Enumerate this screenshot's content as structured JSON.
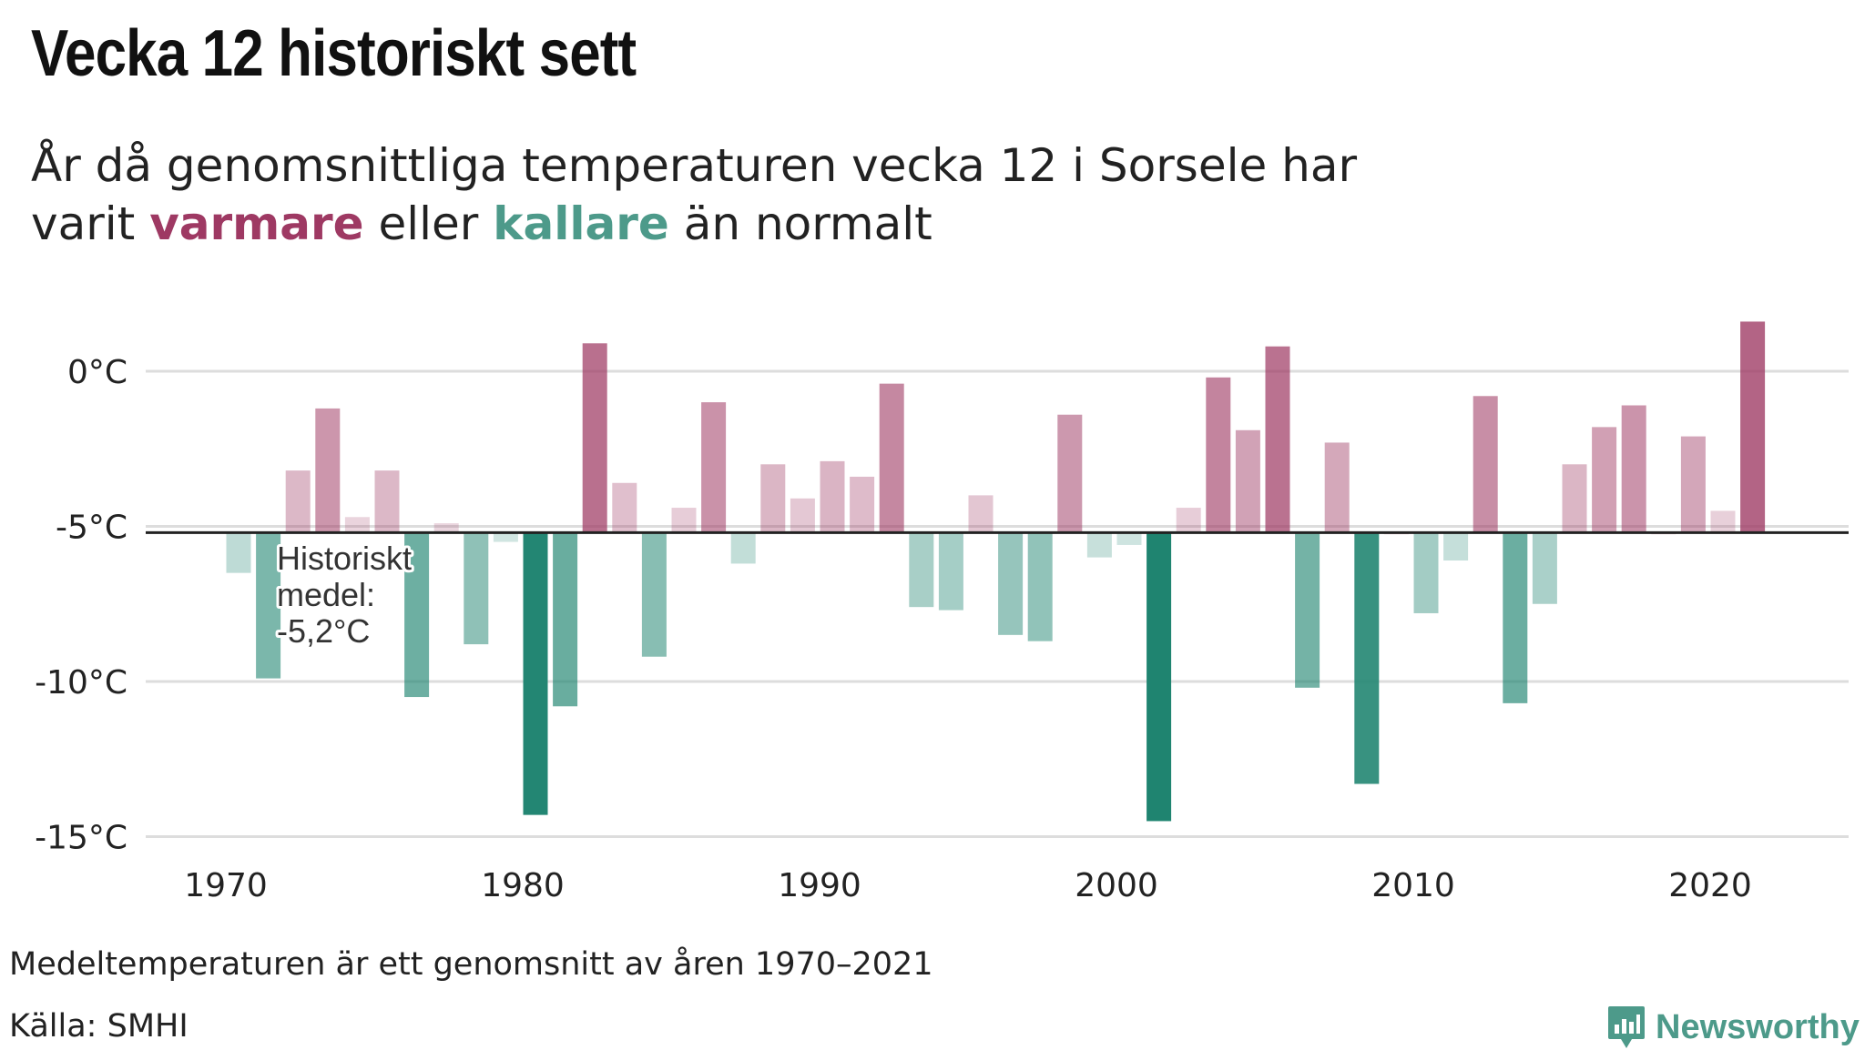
{
  "header": {
    "title": "Vecka 12 historiskt sett",
    "subtitle_line1": "År då genomsnittliga temperaturen vecka 12 i Sorsele har",
    "subtitle_pre": "varit ",
    "subtitle_warm": "varmare",
    "subtitle_mid": " eller ",
    "subtitle_cold": "kallare",
    "subtitle_post": " än normalt"
  },
  "footer": {
    "note": "Medeltemperaturen är ett genomsnitt av åren 1970–2021",
    "source": "Källa: SMHI",
    "brand": "Newsworthy"
  },
  "colors": {
    "warm": "#9e3963",
    "cold": "#1f8470",
    "mean_line": "#222222",
    "grid": "#dddddd"
  },
  "chart_data": {
    "type": "bar",
    "baseline": -5.2,
    "baseline_label": [
      "Historiskt",
      "medel:",
      "-5,2°C"
    ],
    "x": [
      1970,
      1971,
      1972,
      1973,
      1974,
      1975,
      1976,
      1977,
      1978,
      1979,
      1980,
      1981,
      1982,
      1983,
      1984,
      1985,
      1986,
      1987,
      1988,
      1989,
      1990,
      1991,
      1992,
      1993,
      1994,
      1995,
      1996,
      1997,
      1998,
      1999,
      2000,
      2001,
      2002,
      2003,
      2004,
      2005,
      2006,
      2007,
      2008,
      2009,
      2010,
      2011,
      2012,
      2013,
      2014,
      2015,
      2016,
      2017,
      2018,
      2019,
      2020,
      2021
    ],
    "values": [
      -6.5,
      -9.9,
      -3.2,
      -1.2,
      -4.7,
      -3.2,
      -10.5,
      -4.9,
      -8.8,
      -5.5,
      -14.3,
      -10.8,
      0.9,
      -3.6,
      -9.2,
      -4.4,
      -1.0,
      -6.2,
      -3.0,
      -4.1,
      -2.9,
      -3.4,
      -0.4,
      -7.6,
      -7.7,
      -4.0,
      -8.5,
      -8.7,
      -1.4,
      -6.0,
      -5.6,
      -14.5,
      -4.4,
      -0.2,
      -1.9,
      0.8,
      -10.2,
      -2.3,
      -13.3,
      -5.2,
      -7.8,
      -6.1,
      -0.8,
      -10.7,
      -7.5,
      -3.0,
      -1.8,
      -1.1,
      -5.2,
      -2.1,
      -4.5,
      1.6
    ],
    "ylim": [
      -15,
      2
    ],
    "yticks": [
      0,
      -5,
      -10,
      -15
    ],
    "ytick_labels": [
      "0°C",
      "-5°C",
      "-10°C",
      "-15°C"
    ],
    "xticks": [
      1970,
      1980,
      1990,
      2000,
      2010,
      2020
    ],
    "xtick_labels": [
      "1970",
      "1980",
      "1990",
      "2000",
      "2010",
      "2020"
    ],
    "grid": true
  }
}
